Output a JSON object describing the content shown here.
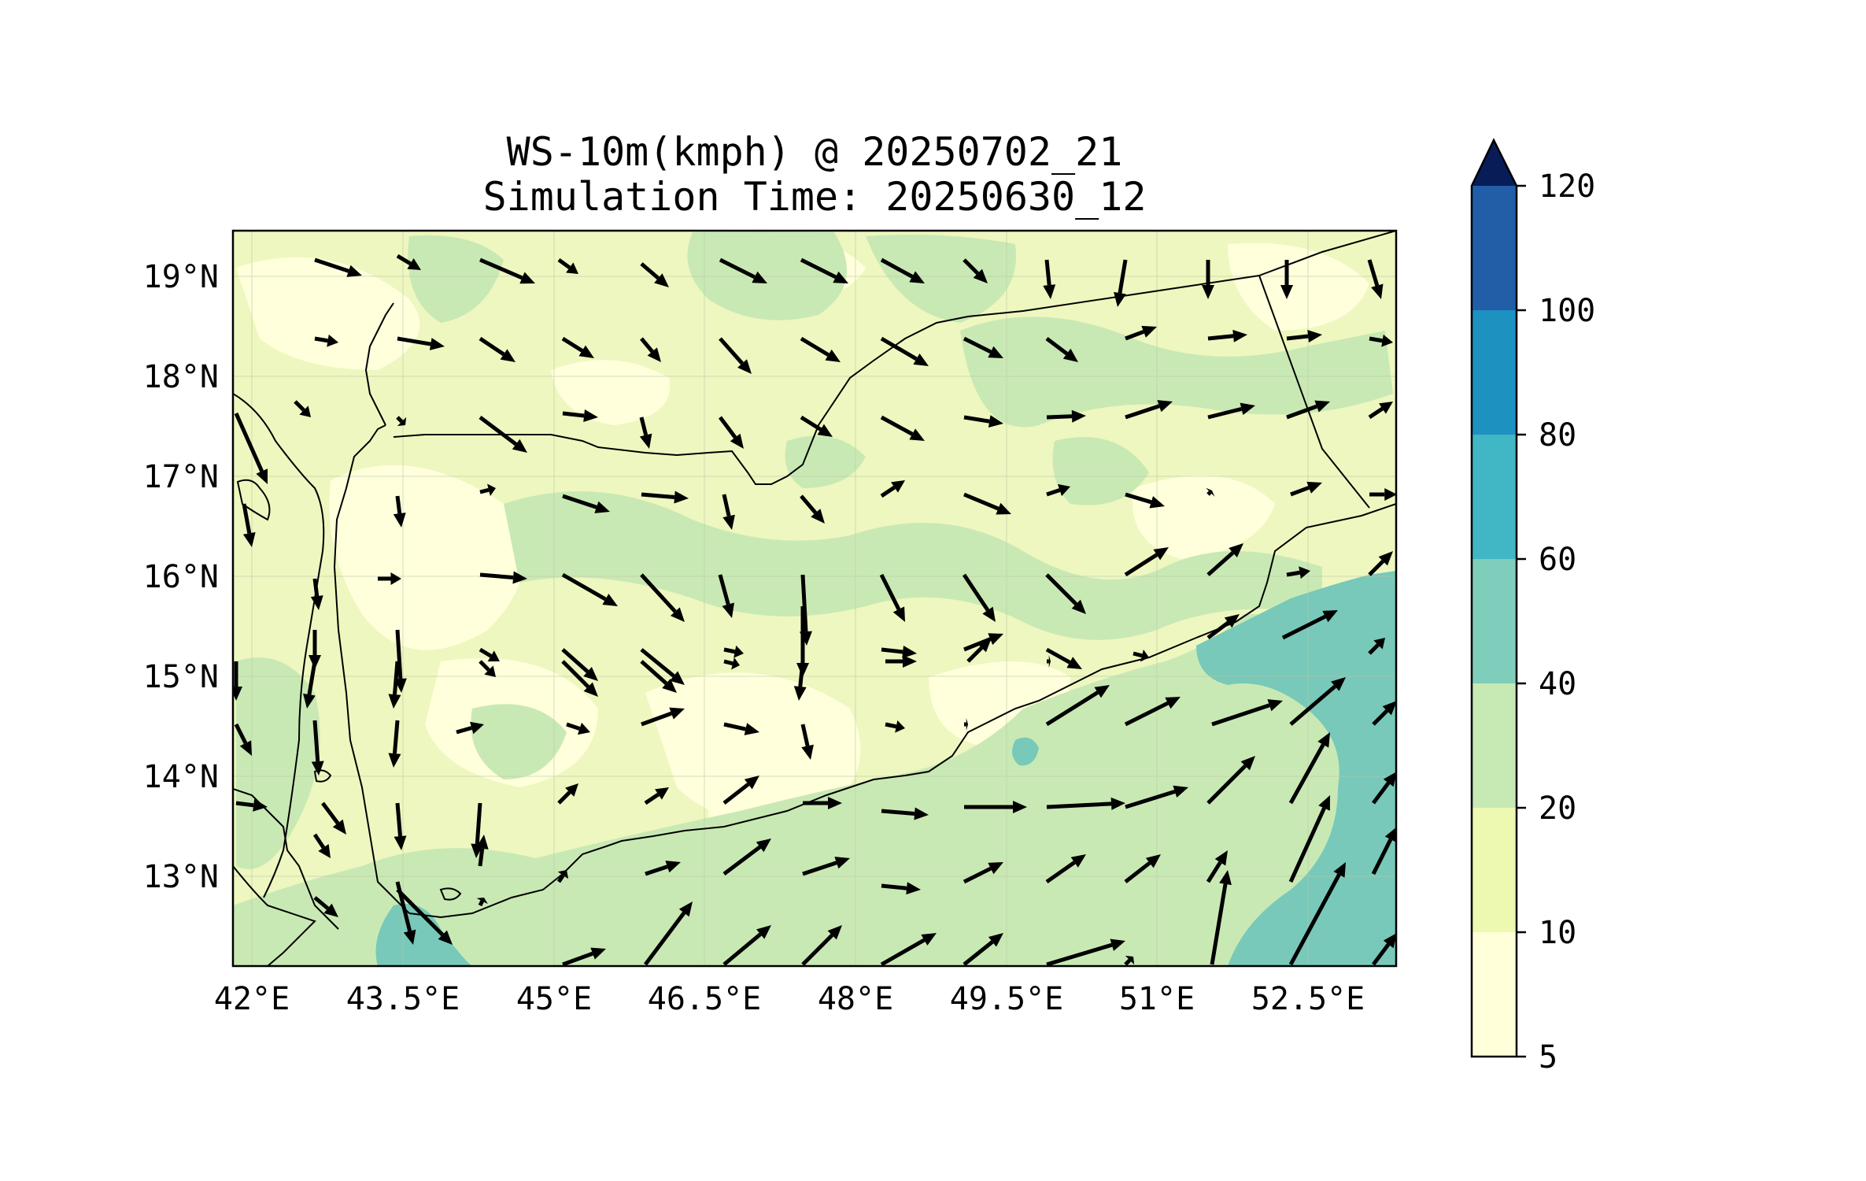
{
  "title": {
    "line1": "WS-10m(kmph) @ 20250702_21",
    "line2": "Simulation Time: 20250630_12"
  },
  "map": {
    "lon_range": [
      42.0,
      53.0
    ],
    "lat_range": [
      12.1,
      19.5
    ],
    "lon_ticks": [
      {
        "value": 42.0,
        "label": "42°E"
      },
      {
        "value": 43.5,
        "label": "43.5°E"
      },
      {
        "value": 45.0,
        "label": "45°E"
      },
      {
        "value": 46.5,
        "label": "46.5°E"
      },
      {
        "value": 48.0,
        "label": "48°E"
      },
      {
        "value": 49.5,
        "label": "49.5°E"
      },
      {
        "value": 51.0,
        "label": "51°E"
      },
      {
        "value": 52.5,
        "label": "52.5°E"
      }
    ],
    "lat_ticks": [
      {
        "value": 19,
        "label": "19°N"
      },
      {
        "value": 18,
        "label": "18°N"
      },
      {
        "value": 17,
        "label": "17°N"
      },
      {
        "value": 16,
        "label": "16°N"
      },
      {
        "value": 15,
        "label": "15°N"
      },
      {
        "value": 14,
        "label": "14°N"
      },
      {
        "value": 13,
        "label": "13°N"
      }
    ],
    "grid": true
  },
  "colorbar": {
    "levels": [
      "5",
      "10",
      "20",
      "40",
      "60",
      "80",
      "100",
      "120"
    ],
    "colors": [
      "#ffffd9",
      "#edf8b1",
      "#c7e9b4",
      "#7fcdbb",
      "#41b6c4",
      "#1d91c0",
      "#225ea8",
      "#253494"
    ],
    "extend_color": "#081d58",
    "extend": "max"
  },
  "colors": {
    "land_base": "#eef7bf",
    "coast_line": "#000000",
    "vector": "#000000"
  }
}
